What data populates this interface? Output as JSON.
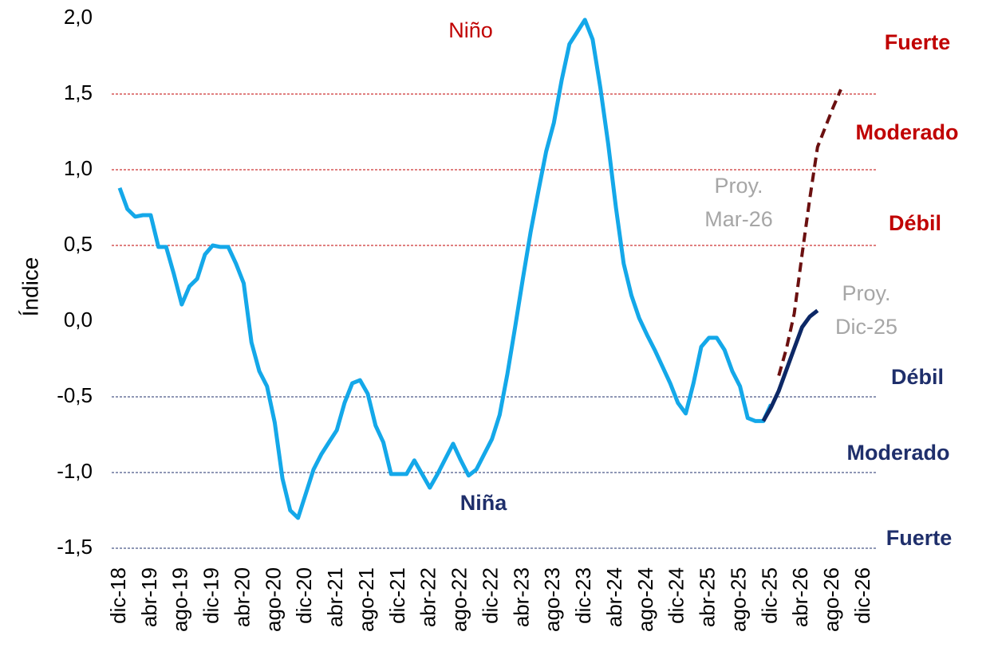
{
  "chart_data": {
    "type": "line",
    "ylabel": "Índice",
    "ylim": [
      -1.5,
      2.0
    ],
    "yticks": [
      {
        "value": -1.5,
        "label": "-1,5"
      },
      {
        "value": -1.0,
        "label": "-1,0"
      },
      {
        "value": -0.5,
        "label": "-0,5"
      },
      {
        "value": 0.0,
        "label": "0,0"
      },
      {
        "value": 0.5,
        "label": "0,5"
      },
      {
        "value": 1.0,
        "label": "1,0"
      },
      {
        "value": 1.5,
        "label": "1,5"
      },
      {
        "value": 2.0,
        "label": "2,0"
      }
    ],
    "categories": [
      "dic-18",
      null,
      null,
      null,
      "abr-19",
      null,
      null,
      null,
      "ago-19",
      null,
      null,
      null,
      "dic-19",
      null,
      null,
      null,
      "abr-20",
      null,
      null,
      null,
      "ago-20",
      null,
      null,
      null,
      "dic-20",
      null,
      null,
      null,
      "abr-21",
      null,
      null,
      null,
      "ago-21",
      null,
      null,
      null,
      "dic-21",
      null,
      null,
      null,
      "abr-22",
      null,
      null,
      null,
      "ago-22",
      null,
      null,
      null,
      "dic-22",
      null,
      null,
      null,
      "abr-23",
      null,
      null,
      null,
      "ago-23",
      null,
      null,
      null,
      "dic-23",
      null,
      null,
      null,
      "abr-24",
      null,
      null,
      null,
      "ago-24",
      null,
      null,
      null,
      "dic-24",
      null,
      null,
      null,
      "abr-25",
      null,
      null,
      null,
      "ago-25",
      null,
      null,
      null,
      "dic-25",
      null,
      null,
      null,
      "abr-26",
      null,
      null,
      null,
      "ago-26",
      null,
      null,
      null,
      "dic-26"
    ],
    "series": [
      {
        "color": "#14a8e9",
        "dash": false,
        "values": [
          0.88,
          0.74,
          0.69,
          0.7,
          0.7,
          0.49,
          0.49,
          0.31,
          0.11,
          0.23,
          0.28,
          0.44,
          0.5,
          0.49,
          0.49,
          0.38,
          0.25,
          -0.14,
          -0.33,
          -0.43,
          -0.67,
          -1.04,
          -1.25,
          -1.3,
          -1.14,
          -0.98,
          -0.88,
          -0.8,
          -0.72,
          -0.54,
          -0.41,
          -0.39,
          -0.48,
          -0.69,
          -0.8,
          -1.01,
          -1.01,
          -1.01,
          -0.92,
          -1.01,
          -1.1,
          -1.01,
          -0.91,
          -0.81,
          -0.92,
          -1.02,
          -0.98,
          -0.88,
          -0.78,
          -0.62,
          -0.35,
          -0.04,
          0.28,
          0.59,
          0.86,
          1.12,
          1.31,
          1.59,
          1.83,
          1.91,
          1.99,
          1.86,
          1.54,
          1.17,
          0.75,
          0.38,
          0.17,
          0.02,
          -0.09,
          -0.19,
          -0.3,
          -0.41,
          -0.54,
          -0.61,
          -0.41,
          -0.17,
          -0.11,
          -0.11,
          -0.19,
          -0.33,
          -0.43,
          -0.64,
          -0.66,
          -0.66,
          -0.55,
          null,
          null,
          null,
          null,
          null,
          null,
          null,
          null,
          null,
          null,
          null,
          null
        ]
      },
      {
        "color": "#0d2866",
        "dash": false,
        "values": [
          null,
          null,
          null,
          null,
          null,
          null,
          null,
          null,
          null,
          null,
          null,
          null,
          null,
          null,
          null,
          null,
          null,
          null,
          null,
          null,
          null,
          null,
          null,
          null,
          null,
          null,
          null,
          null,
          null,
          null,
          null,
          null,
          null,
          null,
          null,
          null,
          null,
          null,
          null,
          null,
          null,
          null,
          null,
          null,
          null,
          null,
          null,
          null,
          null,
          null,
          null,
          null,
          null,
          null,
          null,
          null,
          null,
          null,
          null,
          null,
          null,
          null,
          null,
          null,
          null,
          null,
          null,
          null,
          null,
          null,
          null,
          null,
          null,
          null,
          null,
          null,
          null,
          null,
          null,
          null,
          null,
          null,
          null,
          -0.66,
          -0.57,
          -0.46,
          -0.32,
          -0.18,
          -0.04,
          0.03,
          0.07,
          null,
          null,
          null,
          null,
          null,
          null
        ]
      },
      {
        "color": "#6b1010",
        "dash": true,
        "values": [
          null,
          null,
          null,
          null,
          null,
          null,
          null,
          null,
          null,
          null,
          null,
          null,
          null,
          null,
          null,
          null,
          null,
          null,
          null,
          null,
          null,
          null,
          null,
          null,
          null,
          null,
          null,
          null,
          null,
          null,
          null,
          null,
          null,
          null,
          null,
          null,
          null,
          null,
          null,
          null,
          null,
          null,
          null,
          null,
          null,
          null,
          null,
          null,
          null,
          null,
          null,
          null,
          null,
          null,
          null,
          null,
          null,
          null,
          null,
          null,
          null,
          null,
          null,
          null,
          null,
          null,
          null,
          null,
          null,
          null,
          null,
          null,
          null,
          null,
          null,
          null,
          null,
          null,
          null,
          null,
          null,
          null,
          null,
          null,
          null,
          -0.36,
          -0.18,
          0.05,
          0.44,
          0.81,
          1.15,
          1.28,
          1.41,
          1.53,
          null,
          null,
          null
        ]
      }
    ],
    "thresholds": [
      {
        "value": 1.5,
        "label": "Fuerte",
        "color": "#c00000"
      },
      {
        "value": 1.0,
        "label": "Moderado",
        "color": "#c00000"
      },
      {
        "value": 0.5,
        "label": "Débil",
        "color": "#c00000"
      },
      {
        "value": -0.5,
        "label": "Débil",
        "color": "#1f2f6b"
      },
      {
        "value": -1.0,
        "label": "Moderado",
        "color": "#1f2f6b"
      },
      {
        "value": -1.5,
        "label": "Fuerte",
        "color": "#1f2f6b"
      }
    ],
    "annotations": [
      {
        "text": "Niño",
        "color": "#c00000"
      },
      {
        "text": "Niña",
        "color": "#1f2f6b"
      }
    ],
    "projection_labels": [
      {
        "lines": [
          "Proy.",
          "Mar-26"
        ],
        "color": "#a6a6a6"
      },
      {
        "lines": [
          "Proy.",
          "Dic-25"
        ],
        "color": "#a6a6a6"
      }
    ]
  }
}
